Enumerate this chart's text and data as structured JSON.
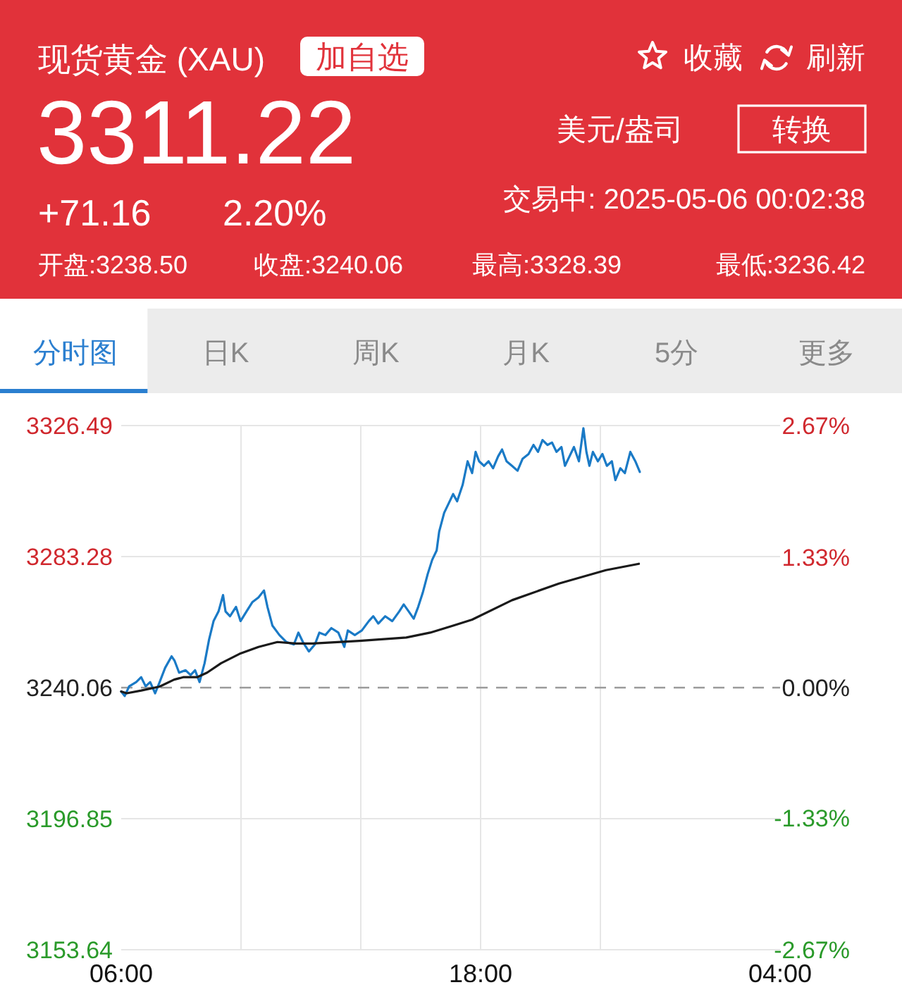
{
  "chart_data": [
    {
      "type": "other",
      "title": "现货黄金 (XAU)",
      "annotations": [
        "加自选",
        "收藏",
        "刷新",
        "3311.22",
        "美元/盎司",
        "转换",
        "+71.16",
        "2.20%",
        "交易中: 2025-05-06 00:02:38",
        "开盘:3238.50",
        "收盘:3240.06",
        "最高:3328.39",
        "最低:3236.42",
        "分时图",
        "日K",
        "周K",
        "月K",
        "5分",
        "更多"
      ]
    },
    {
      "type": "line",
      "series": [
        {
          "color": "#1a7ac6",
          "x": [
            "2025-05-05T06:00",
            "2025-05-05T06:07",
            "2025-05-05T06:16",
            "2025-05-05T06:30",
            "2025-05-05T06:40",
            "2025-05-05T06:49",
            "2025-05-05T06:58",
            "2025-05-05T07:08",
            "2025-05-05T07:17",
            "2025-05-05T07:28",
            "2025-05-05T07:41",
            "2025-05-05T07:47",
            "2025-05-05T07:56",
            "2025-05-05T08:09",
            "2025-05-05T08:19",
            "2025-05-05T08:28",
            "2025-05-05T08:37",
            "2025-05-05T08:47",
            "2025-05-05T08:56",
            "2025-05-05T09:05",
            "2025-05-05T09:15",
            "2025-05-05T09:24",
            "2025-05-05T09:29",
            "2025-05-05T09:38",
            "2025-05-05T09:50",
            "2025-05-05T09:59",
            "2025-05-05T10:11",
            "2025-05-05T10:23",
            "2025-05-05T10:35",
            "2025-05-05T10:46",
            "2025-05-05T10:53",
            "2025-05-05T11:03",
            "2025-05-05T11:17",
            "2025-05-05T11:31",
            "2025-05-05T11:46",
            "2025-05-05T11:55",
            "2025-05-05T12:04",
            "2025-05-05T12:16",
            "2025-05-05T12:28",
            "2025-05-05T12:37",
            "2025-05-05T12:49",
            "2025-05-05T13:01",
            "2025-05-05T13:15",
            "2025-05-05T13:27",
            "2025-05-05T13:34",
            "2025-05-05T13:48",
            "2025-05-05T14:02",
            "2025-05-05T14:16",
            "2025-05-05T14:25",
            "2025-05-05T14:35",
            "2025-05-05T14:49",
            "2025-05-05T15:03",
            "2025-05-05T15:17",
            "2025-05-05T15:26",
            "2025-05-05T15:36",
            "2025-05-05T15:46",
            "2025-05-05T15:55",
            "2025-05-05T16:04",
            "2025-05-05T16:14",
            "2025-05-05T16:23",
            "2025-05-05T16:32",
            "2025-05-05T16:37",
            "2025-05-05T16:47",
            "2025-05-05T16:56",
            "2025-05-05T17:05",
            "2025-05-05T17:13",
            "2025-05-05T17:24",
            "2025-05-05T17:34",
            "2025-05-05T17:43",
            "2025-05-05T17:50",
            "2025-05-05T17:57",
            "2025-05-05T18:07",
            "2025-05-05T18:16",
            "2025-05-05T18:25",
            "2025-05-05T18:35",
            "2025-05-05T18:43",
            "2025-05-05T18:52",
            "2025-05-05T19:03",
            "2025-05-05T19:14",
            "2025-05-05T19:24",
            "2025-05-05T19:36",
            "2025-05-05T19:46",
            "2025-05-05T19:55",
            "2025-05-05T20:04",
            "2025-05-05T20:14",
            "2025-05-05T20:23",
            "2025-05-05T20:32",
            "2025-05-05T20:42",
            "2025-05-05T20:49",
            "2025-05-05T20:58",
            "2025-05-05T21:07",
            "2025-05-05T21:17",
            "2025-05-05T21:26",
            "2025-05-05T21:32",
            "2025-05-05T21:38",
            "2025-05-05T21:45",
            "2025-05-05T21:55",
            "2025-05-05T22:04",
            "2025-05-05T22:13",
            "2025-05-05T22:23",
            "2025-05-05T22:30",
            "2025-05-05T22:40",
            "2025-05-05T22:49",
            "2025-05-05T23:00",
            "2025-05-05T23:10",
            "2025-05-05T23:19"
          ],
          "values": [
            3238.8,
            3237.3,
            3240.5,
            3241.9,
            3243.5,
            3240.5,
            3241.9,
            3238.2,
            3241.9,
            3246.6,
            3250.4,
            3248.9,
            3245.0,
            3245.8,
            3244.2,
            3245.8,
            3241.9,
            3248.1,
            3255.9,
            3262.0,
            3265.2,
            3270.6,
            3265.2,
            3263.6,
            3266.7,
            3262.0,
            3265.2,
            3268.3,
            3269.8,
            3272.1,
            3266.7,
            3260.5,
            3257.4,
            3255.1,
            3254.3,
            3258.2,
            3255.1,
            3252.0,
            3254.3,
            3258.2,
            3257.4,
            3259.7,
            3258.2,
            3253.5,
            3258.9,
            3257.4,
            3258.9,
            3262.0,
            3263.6,
            3261.2,
            3263.6,
            3262.0,
            3265.2,
            3267.5,
            3265.2,
            3262.8,
            3266.7,
            3271.3,
            3277.5,
            3282.2,
            3285.3,
            3291.5,
            3297.7,
            3300.8,
            3303.9,
            3301.5,
            3306.9,
            3314.7,
            3310.8,
            3317.8,
            3314.7,
            3313.2,
            3314.7,
            3312.4,
            3316.3,
            3318.6,
            3314.7,
            3313.2,
            3311.6,
            3315.5,
            3317.1,
            3320.1,
            3317.8,
            3321.7,
            3320.1,
            3320.9,
            3317.8,
            3319.4,
            3313.2,
            3316.3,
            3319.4,
            3314.7,
            3325.6,
            3317.8,
            3313.2,
            3317.8,
            3314.7,
            3317.1,
            3313.2,
            3314.7,
            3308.5,
            3312.4,
            3310.8,
            3317.8,
            3314.7,
            3311.2
          ]
        },
        {
          "color": "#1a1a1a",
          "x": [
            "2025-05-05T06:00",
            "2025-05-05T06:11",
            "2025-05-05T06:40",
            "2025-05-05T07:17",
            "2025-05-05T07:46",
            "2025-05-05T08:04",
            "2025-05-05T08:32",
            "2025-05-05T08:52",
            "2025-05-05T09:20",
            "2025-05-05T09:57",
            "2025-05-05T10:35",
            "2025-05-05T11:13",
            "2025-05-05T11:50",
            "2025-05-05T12:23",
            "2025-05-05T13:57",
            "2025-05-05T15:31",
            "2025-05-05T16:19",
            "2025-05-05T17:05",
            "2025-05-05T17:43",
            "2025-05-05T19:03",
            "2025-05-05T20:37",
            "2025-05-05T22:11",
            "2025-05-05T23:17"
          ],
          "values": [
            3238.8,
            3238.2,
            3239.1,
            3240.4,
            3242.7,
            3243.5,
            3243.5,
            3245.0,
            3248.1,
            3251.2,
            3253.5,
            3255.1,
            3254.6,
            3254.6,
            3255.5,
            3256.6,
            3258.2,
            3260.5,
            3262.5,
            3268.9,
            3274.4,
            3278.8,
            3280.9
          ]
        }
      ],
      "xlim": [
        "2025-05-05T06:00",
        "2025-05-06T04:00"
      ],
      "xticks": [
        {
          "value": "2025-05-05T06:00",
          "label": "06:00"
        },
        {
          "value": "2025-05-05T10:00",
          "label": null
        },
        {
          "value": "2025-05-05T14:00",
          "label": null
        },
        {
          "value": "2025-05-05T18:00",
          "label": "18:00"
        },
        {
          "value": "2025-05-05T22:00",
          "label": null
        },
        {
          "value": "2025-05-06T04:00",
          "label": "04:00"
        }
      ],
      "ylim": [
        3153.64,
        3326.49
      ],
      "yticks": [
        3153.64,
        3196.85,
        3240.06,
        3283.28,
        3326.49
      ],
      "y2lim": [
        -2.67,
        2.67
      ],
      "y2ticks": [
        {
          "value": -2.67,
          "label": "-2.67%"
        },
        {
          "value": -1.33,
          "label": "-1.33%"
        },
        {
          "value": 0,
          "label": "0.00%"
        },
        {
          "value": 1.33,
          "label": "1.33%"
        },
        {
          "value": 2.67,
          "label": "2.67%"
        }
      ],
      "grid": true,
      "ref_lines": [
        {
          "axis": "y",
          "value": 3240.06,
          "color": "#9a9a9a",
          "line_style": "dashed"
        }
      ]
    }
  ]
}
